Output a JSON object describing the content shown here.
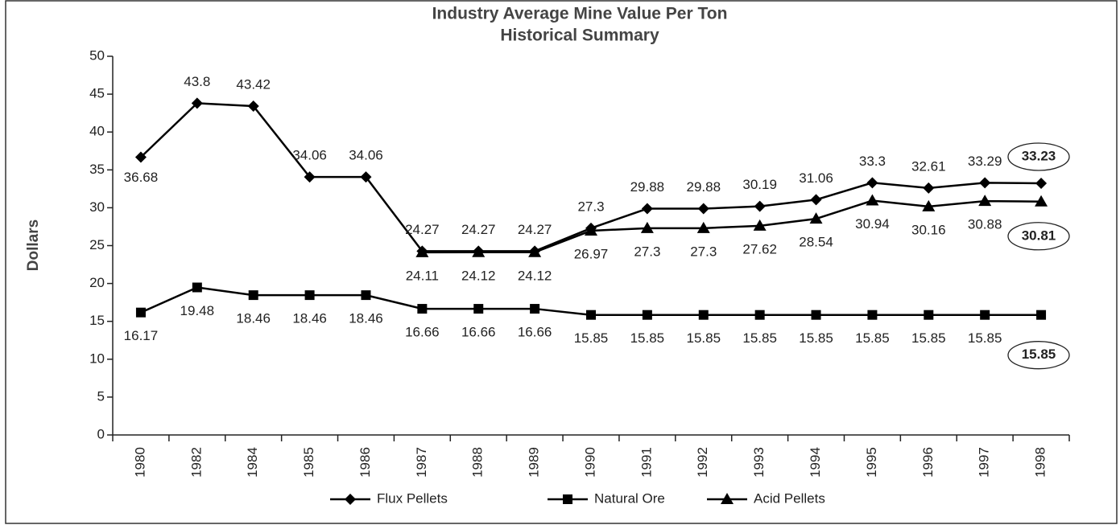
{
  "chart_data": {
    "type": "line",
    "title": "Industry Average Mine Value Per Ton",
    "subtitle": "Historical Summary",
    "y_label": "Dollars",
    "categories": [
      "1980",
      "1982",
      "1984",
      "1985",
      "1986",
      "1987",
      "1988",
      "1989",
      "1990",
      "1991",
      "1992",
      "1993",
      "1994",
      "1995",
      "1996",
      "1997",
      "1998"
    ],
    "series": [
      {
        "name": "Flux Pellets",
        "color": "#000000",
        "marker": "diamond",
        "values": [
          36.68,
          43.8,
          43.42,
          34.06,
          34.06,
          24.27,
          24.27,
          24.27,
          27.3,
          29.88,
          29.88,
          30.19,
          31.06,
          33.3,
          32.61,
          33.29,
          33.23
        ]
      },
      {
        "name": "Natural Ore",
        "color": "#000000",
        "marker": "square",
        "values": [
          16.17,
          19.48,
          18.46,
          18.46,
          18.46,
          16.66,
          16.66,
          16.66,
          15.85,
          15.85,
          15.85,
          15.85,
          15.85,
          15.85,
          15.85,
          15.85,
          15.85
        ]
      },
      {
        "name": "Acid Pellets",
        "color": "#000000",
        "marker": "triangle",
        "values": [
          null,
          null,
          null,
          null,
          null,
          24.11,
          24.12,
          24.12,
          26.97,
          27.3,
          27.3,
          27.62,
          28.54,
          30.94,
          30.16,
          30.88,
          30.81
        ]
      }
    ],
    "ylim": [
      0,
      50
    ],
    "yticks": [
      0,
      5,
      10,
      15,
      20,
      25,
      30,
      35,
      40,
      45,
      50
    ],
    "grid": false
  }
}
